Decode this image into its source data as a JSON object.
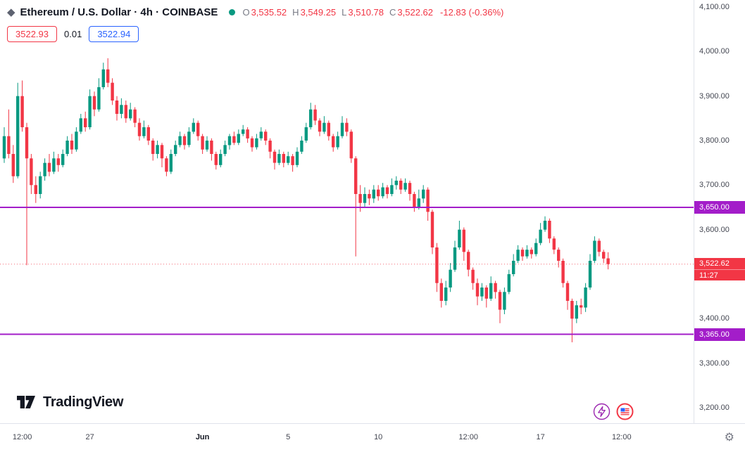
{
  "header": {
    "title": "Ethereum / U.S. Dollar · 4h · COINBASE",
    "market_status": "open",
    "ohlc": {
      "o_label": "O",
      "o_value": "3,535.52",
      "h_label": "H",
      "h_value": "3,549.25",
      "l_label": "L",
      "l_value": "3,510.78",
      "c_label": "C",
      "c_value": "3,522.62",
      "change": "-12.83 (-0.36%)"
    },
    "quote": {
      "bid": "3522.93",
      "spread": "0.01",
      "ask": "3522.94"
    }
  },
  "footer": {
    "brand": "TradingView"
  },
  "colors": {
    "up": "#089981",
    "down": "#f23645",
    "level": "#a31dc9",
    "last_price": "#f23645",
    "bid": "#f23645",
    "ask": "#2962ff",
    "axis_text": "#434651",
    "border": "#e0e3eb"
  },
  "price_axis": {
    "ticks": [
      {
        "price": 4100,
        "label": "4,100.00"
      },
      {
        "price": 4000,
        "label": "4,000.00"
      },
      {
        "price": 3900,
        "label": "3,900.00"
      },
      {
        "price": 3800,
        "label": "3,800.00"
      },
      {
        "price": 3700,
        "label": "3,700.00"
      },
      {
        "price": 3600,
        "label": "3,600.00"
      },
      {
        "price": 3400,
        "label": "3,400.00"
      },
      {
        "price": 3300,
        "label": "3,300.00"
      },
      {
        "price": 3200,
        "label": "3,200.00"
      }
    ]
  },
  "time_axis": {
    "labels": [
      {
        "i": 4,
        "label": "12:00"
      },
      {
        "i": 19,
        "label": "27"
      },
      {
        "i": 44,
        "label": "Jun",
        "bold": true
      },
      {
        "i": 63,
        "label": "5"
      },
      {
        "i": 83,
        "label": "10"
      },
      {
        "i": 103,
        "label": "12:00"
      },
      {
        "i": 119,
        "label": "17"
      },
      {
        "i": 137,
        "label": "12:00"
      }
    ]
  },
  "levels": [
    {
      "price": 3650,
      "label": "3,650.00"
    },
    {
      "price": 3365,
      "label": "3,365.00"
    }
  ],
  "last_price": {
    "price": 3522.62,
    "label": "3,522.62",
    "countdown": "11:27"
  },
  "chart_data": {
    "type": "candlestick",
    "title": "Ethereum / U.S. Dollar",
    "exchange": "COINBASE",
    "interval": "4h",
    "ylim": [
      3200,
      4100
    ],
    "ohlc_format": [
      "open",
      "high",
      "low",
      "close"
    ],
    "candles": [
      [
        3760,
        3830,
        3750,
        3810
      ],
      [
        3810,
        3870,
        3760,
        3770
      ],
      [
        3770,
        3790,
        3705,
        3720
      ],
      [
        3720,
        3930,
        3715,
        3900
      ],
      [
        3900,
        3935,
        3820,
        3830
      ],
      [
        3830,
        3840,
        3520,
        3760
      ],
      [
        3760,
        3770,
        3680,
        3700
      ],
      [
        3700,
        3720,
        3660,
        3680
      ],
      [
        3680,
        3730,
        3670,
        3720
      ],
      [
        3720,
        3760,
        3710,
        3750
      ],
      [
        3750,
        3770,
        3720,
        3730
      ],
      [
        3730,
        3775,
        3725,
        3760
      ],
      [
        3760,
        3770,
        3730,
        3745
      ],
      [
        3745,
        3780,
        3740,
        3770
      ],
      [
        3770,
        3810,
        3765,
        3800
      ],
      [
        3800,
        3815,
        3770,
        3780
      ],
      [
        3780,
        3830,
        3775,
        3820
      ],
      [
        3820,
        3860,
        3815,
        3850
      ],
      [
        3850,
        3865,
        3820,
        3830
      ],
      [
        3830,
        3915,
        3825,
        3900
      ],
      [
        3900,
        3910,
        3855,
        3870
      ],
      [
        3870,
        3940,
        3865,
        3920
      ],
      [
        3920,
        3975,
        3915,
        3960
      ],
      [
        3960,
        3985,
        3920,
        3930
      ],
      [
        3930,
        3940,
        3880,
        3890
      ],
      [
        3890,
        3900,
        3845,
        3860
      ],
      [
        3860,
        3895,
        3850,
        3880
      ],
      [
        3880,
        3890,
        3840,
        3850
      ],
      [
        3850,
        3885,
        3845,
        3870
      ],
      [
        3870,
        3875,
        3830,
        3840
      ],
      [
        3840,
        3850,
        3800,
        3810
      ],
      [
        3810,
        3845,
        3805,
        3830
      ],
      [
        3830,
        3835,
        3790,
        3800
      ],
      [
        3800,
        3805,
        3755,
        3770
      ],
      [
        3770,
        3800,
        3760,
        3790
      ],
      [
        3790,
        3795,
        3740,
        3760
      ],
      [
        3760,
        3765,
        3720,
        3730
      ],
      [
        3730,
        3780,
        3725,
        3770
      ],
      [
        3770,
        3800,
        3765,
        3790
      ],
      [
        3790,
        3820,
        3785,
        3810
      ],
      [
        3810,
        3815,
        3780,
        3790
      ],
      [
        3790,
        3830,
        3785,
        3820
      ],
      [
        3820,
        3850,
        3815,
        3840
      ],
      [
        3840,
        3845,
        3800,
        3810
      ],
      [
        3810,
        3815,
        3770,
        3780
      ],
      [
        3780,
        3810,
        3775,
        3800
      ],
      [
        3800,
        3805,
        3755,
        3770
      ],
      [
        3770,
        3775,
        3735,
        3745
      ],
      [
        3745,
        3780,
        3740,
        3770
      ],
      [
        3770,
        3800,
        3765,
        3790
      ],
      [
        3790,
        3815,
        3780,
        3810
      ],
      [
        3810,
        3820,
        3790,
        3795
      ],
      [
        3795,
        3825,
        3790,
        3815
      ],
      [
        3815,
        3835,
        3810,
        3825
      ],
      [
        3825,
        3830,
        3795,
        3805
      ],
      [
        3805,
        3810,
        3775,
        3785
      ],
      [
        3785,
        3815,
        3780,
        3805
      ],
      [
        3805,
        3830,
        3800,
        3820
      ],
      [
        3820,
        3825,
        3790,
        3800
      ],
      [
        3800,
        3805,
        3760,
        3775
      ],
      [
        3775,
        3780,
        3735,
        3750
      ],
      [
        3750,
        3780,
        3745,
        3770
      ],
      [
        3770,
        3775,
        3740,
        3750
      ],
      [
        3750,
        3775,
        3745,
        3765
      ],
      [
        3765,
        3770,
        3730,
        3745
      ],
      [
        3745,
        3785,
        3740,
        3775
      ],
      [
        3775,
        3810,
        3770,
        3800
      ],
      [
        3800,
        3840,
        3795,
        3830
      ],
      [
        3830,
        3885,
        3825,
        3870
      ],
      [
        3870,
        3880,
        3835,
        3845
      ],
      [
        3845,
        3850,
        3810,
        3820
      ],
      [
        3820,
        3855,
        3815,
        3840
      ],
      [
        3840,
        3845,
        3800,
        3810
      ],
      [
        3810,
        3815,
        3775,
        3785
      ],
      [
        3785,
        3820,
        3780,
        3810
      ],
      [
        3810,
        3855,
        3805,
        3840
      ],
      [
        3840,
        3850,
        3810,
        3820
      ],
      [
        3820,
        3825,
        3750,
        3760
      ],
      [
        3760,
        3765,
        3540,
        3680
      ],
      [
        3680,
        3700,
        3640,
        3660
      ],
      [
        3660,
        3695,
        3650,
        3680
      ],
      [
        3680,
        3690,
        3655,
        3670
      ],
      [
        3670,
        3700,
        3660,
        3690
      ],
      [
        3690,
        3700,
        3665,
        3675
      ],
      [
        3675,
        3705,
        3670,
        3695
      ],
      [
        3695,
        3700,
        3670,
        3680
      ],
      [
        3680,
        3715,
        3675,
        3700
      ],
      [
        3700,
        3720,
        3690,
        3710
      ],
      [
        3710,
        3715,
        3680,
        3690
      ],
      [
        3690,
        3715,
        3685,
        3705
      ],
      [
        3705,
        3710,
        3665,
        3680
      ],
      [
        3680,
        3685,
        3640,
        3650
      ],
      [
        3650,
        3690,
        3645,
        3670
      ],
      [
        3670,
        3700,
        3660,
        3690
      ],
      [
        3690,
        3695,
        3620,
        3640
      ],
      [
        3640,
        3645,
        3545,
        3560
      ],
      [
        3560,
        3570,
        3460,
        3480
      ],
      [
        3480,
        3490,
        3425,
        3440
      ],
      [
        3440,
        3485,
        3430,
        3470
      ],
      [
        3470,
        3525,
        3460,
        3510
      ],
      [
        3510,
        3575,
        3505,
        3560
      ],
      [
        3560,
        3620,
        3555,
        3600
      ],
      [
        3600,
        3605,
        3530,
        3550
      ],
      [
        3550,
        3555,
        3495,
        3510
      ],
      [
        3510,
        3515,
        3465,
        3480
      ],
      [
        3480,
        3490,
        3430,
        3450
      ],
      [
        3450,
        3480,
        3440,
        3470
      ],
      [
        3470,
        3475,
        3425,
        3445
      ],
      [
        3445,
        3495,
        3440,
        3480
      ],
      [
        3480,
        3485,
        3445,
        3460
      ],
      [
        3460,
        3465,
        3390,
        3420
      ],
      [
        3420,
        3470,
        3410,
        3460
      ],
      [
        3460,
        3510,
        3455,
        3500
      ],
      [
        3500,
        3545,
        3495,
        3530
      ],
      [
        3530,
        3565,
        3525,
        3555
      ],
      [
        3555,
        3560,
        3530,
        3540
      ],
      [
        3540,
        3565,
        3535,
        3555
      ],
      [
        3555,
        3560,
        3535,
        3545
      ],
      [
        3545,
        3580,
        3540,
        3570
      ],
      [
        3570,
        3615,
        3565,
        3600
      ],
      [
        3600,
        3630,
        3595,
        3620
      ],
      [
        3620,
        3625,
        3570,
        3580
      ],
      [
        3580,
        3585,
        3545,
        3555
      ],
      [
        3555,
        3560,
        3515,
        3530
      ],
      [
        3530,
        3535,
        3470,
        3480
      ],
      [
        3480,
        3485,
        3420,
        3440
      ],
      [
        3440,
        3445,
        3347,
        3400
      ],
      [
        3400,
        3440,
        3390,
        3430
      ],
      [
        3430,
        3445,
        3410,
        3425
      ],
      [
        3425,
        3480,
        3415,
        3470
      ],
      [
        3470,
        3545,
        3465,
        3530
      ],
      [
        3530,
        3585,
        3525,
        3575
      ],
      [
        3575,
        3580,
        3540,
        3550
      ],
      [
        3550,
        3555,
        3525,
        3535
      ],
      [
        3535.52,
        3549.25,
        3510.78,
        3522.62
      ]
    ]
  }
}
